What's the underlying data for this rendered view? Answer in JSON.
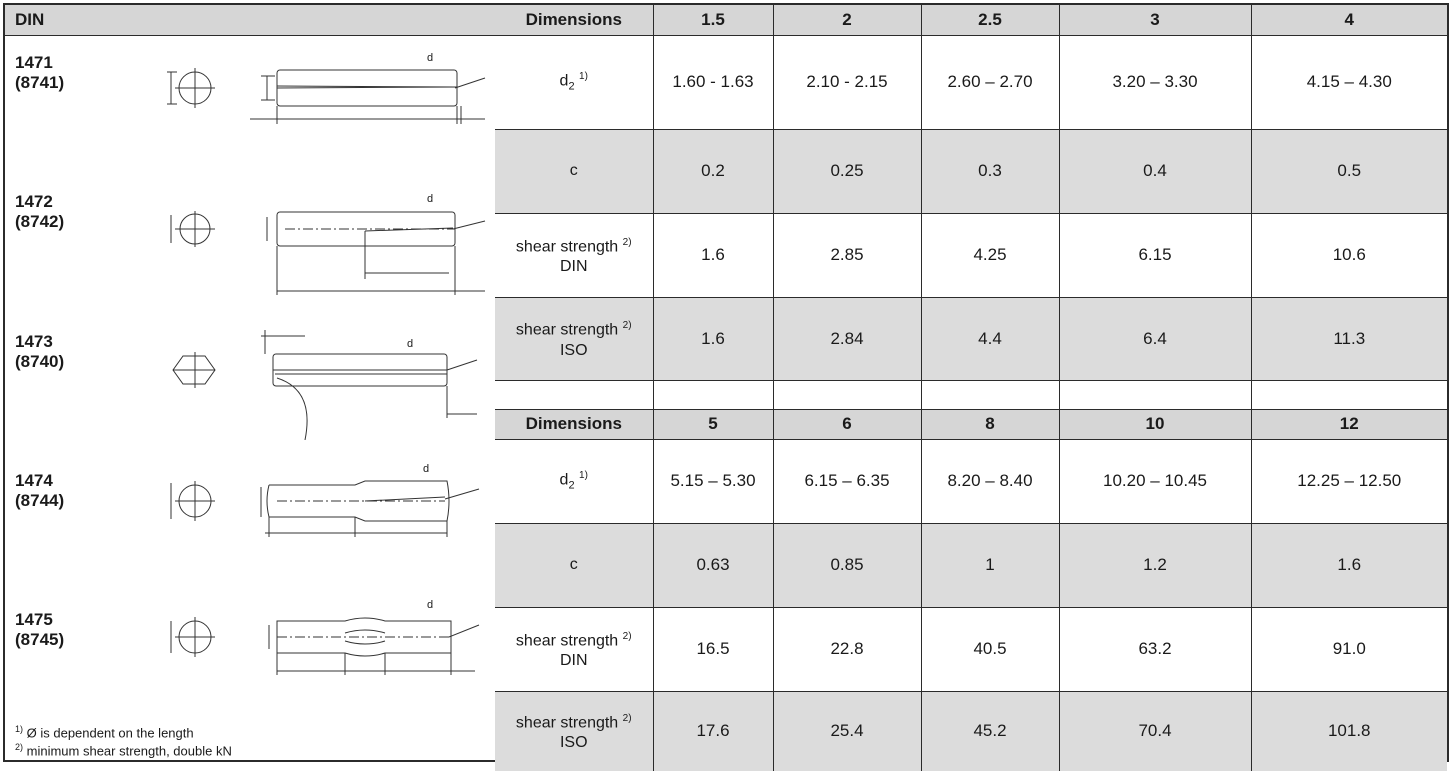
{
  "left": {
    "header": "DIN",
    "pins": [
      {
        "num": "1471",
        "alt": "(8741)",
        "d_label": "d"
      },
      {
        "num": "1472",
        "alt": "(8742)",
        "d_label": "d"
      },
      {
        "num": "1473",
        "alt": "(8740)",
        "d_label": "d"
      },
      {
        "num": "1474",
        "alt": "(8744)",
        "d_label": "d"
      },
      {
        "num": "1475",
        "alt": "(8745)",
        "d_label": "d"
      }
    ],
    "footnotes": [
      {
        "mark": "1)",
        "text": "Ø is dependent on the length"
      },
      {
        "mark": "2)",
        "text": "minimum shear strength, double kN"
      }
    ]
  },
  "table1": {
    "header": [
      "Dimensions",
      "1.5",
      "2",
      "2.5",
      "3",
      "4"
    ],
    "rows": [
      {
        "label": "d",
        "label_sub": "2",
        "label_sup": "1)",
        "values": [
          "1.60 - 1.63",
          "2.10 - 2.15",
          "2.60 – 2.70",
          "3.20 – 3.30",
          "4.15 – 4.30"
        ]
      },
      {
        "label": "c",
        "values": [
          "0.2",
          "0.25",
          "0.3",
          "0.4",
          "0.5"
        ]
      },
      {
        "label": "shear strength",
        "label_sup": "2)",
        "label_line2": "DIN",
        "values": [
          "1.6",
          "2.85",
          "4.25",
          "6.15",
          "10.6"
        ]
      },
      {
        "label": "shear strength",
        "label_sup": "2)",
        "label_line2": "ISO",
        "values": [
          "1.6",
          "2.84",
          "4.4",
          "6.4",
          "11.3"
        ]
      }
    ]
  },
  "table2": {
    "header": [
      "Dimensions",
      "5",
      "6",
      "8",
      "10",
      "12"
    ],
    "rows": [
      {
        "label": "d",
        "label_sub": "2",
        "label_sup": "1)",
        "values": [
          "5.15 – 5.30",
          "6.15 – 6.35",
          "8.20 – 8.40",
          "10.20 – 10.45",
          "12.25 – 12.50"
        ]
      },
      {
        "label": "c",
        "values": [
          "0.63",
          "0.85",
          "1",
          "1.2",
          "1.6"
        ]
      },
      {
        "label": "shear strength",
        "label_sup": "2)",
        "label_line2": "DIN",
        "values": [
          "16.5",
          "22.8",
          "40.5",
          "63.2",
          "91.0"
        ]
      },
      {
        "label": "shear strength",
        "label_sup": "2)",
        "label_line2": "ISO",
        "values": [
          "17.6",
          "25.4",
          "45.2",
          "70.4",
          "101.8"
        ]
      }
    ]
  },
  "colors": {
    "header_bg": "#d6d6d6",
    "row_grey": "#dcdcdc",
    "border": "#2b2b2b"
  }
}
